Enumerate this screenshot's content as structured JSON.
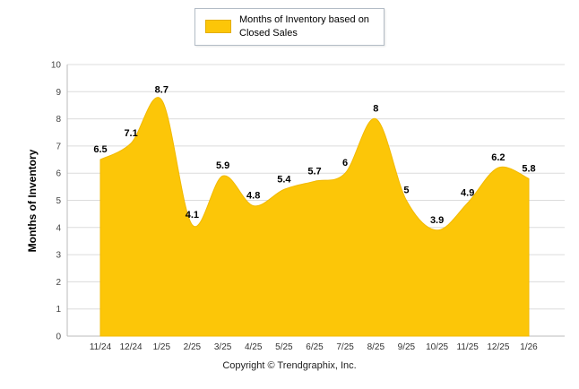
{
  "chart_data": {
    "type": "area",
    "title": "",
    "xlabel": "",
    "ylabel": "Months of Inventory",
    "categories": [
      "11/24",
      "12/24",
      "1/25",
      "2/25",
      "3/25",
      "4/25",
      "5/25",
      "6/25",
      "7/25",
      "8/25",
      "9/25",
      "10/25",
      "11/25",
      "12/25",
      "1/26"
    ],
    "values": [
      6.5,
      7.1,
      8.7,
      4.1,
      5.9,
      4.8,
      5.4,
      5.7,
      6,
      8,
      5,
      3.9,
      4.9,
      6.2,
      5.8
    ],
    "ylim": [
      0,
      10
    ],
    "yticks": [
      0,
      1,
      2,
      3,
      4,
      5,
      6,
      7,
      8,
      9,
      10
    ],
    "grid": "horizontal",
    "legend_position": "top-center",
    "legend": [
      {
        "label": "Months of Inventory based on Closed Sales",
        "color": "#FCC608"
      }
    ],
    "colors": {
      "area": "#FCC608",
      "area_edge": "#F2B900",
      "grid": "#DCDCDC",
      "axis": "#BBBBBB",
      "data_label": "#000000",
      "tick_label": "#333333"
    }
  },
  "footer": {
    "copyright": "Copyright © Trendgraphix, Inc."
  }
}
